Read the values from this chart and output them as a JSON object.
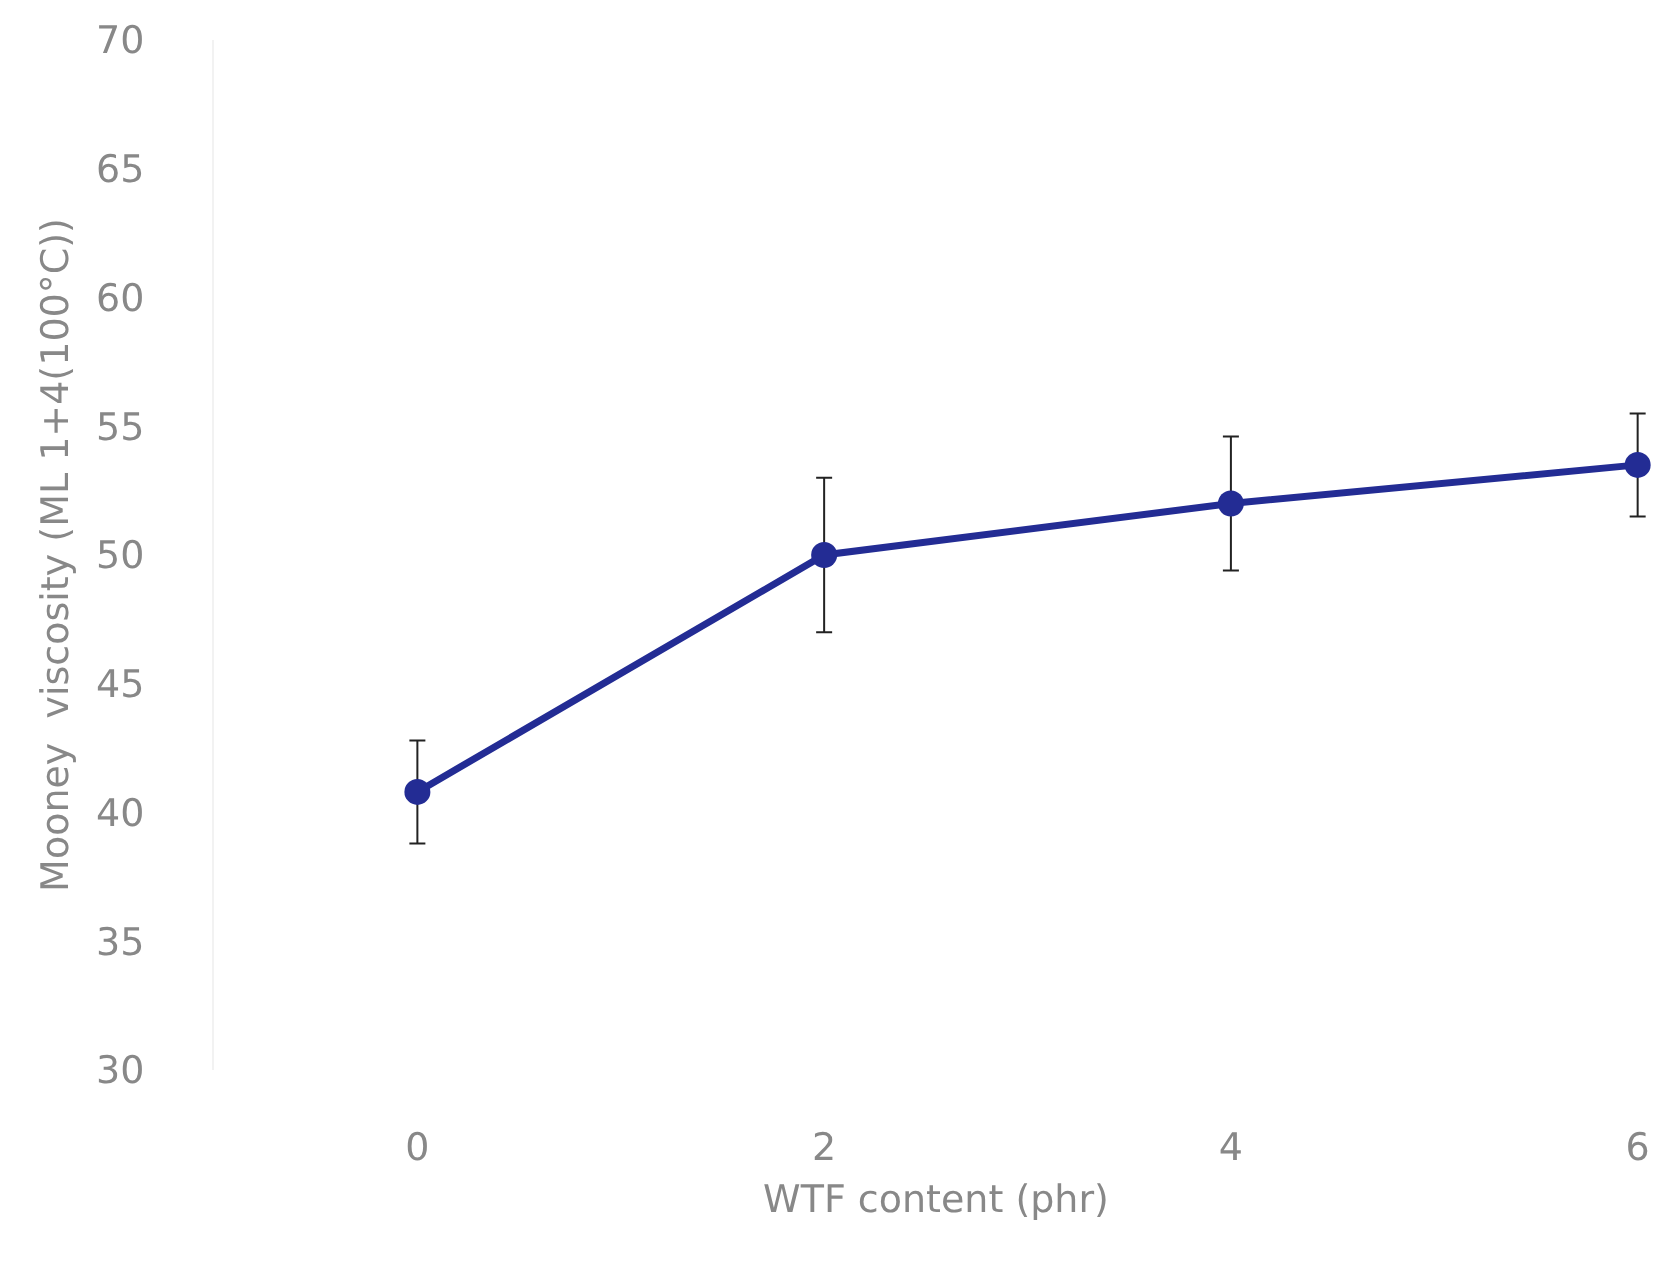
{
  "chart_data": {
    "type": "line",
    "xlabel": "WTF content (phr)",
    "ylabel": "Mooney  viscosity (ML 1+4(100°C))",
    "x": [
      0,
      2,
      4,
      6
    ],
    "series": [
      {
        "color": "#232c94",
        "values": [
          40.8,
          50.0,
          52.0,
          53.5
        ],
        "errors": [
          2.0,
          3.0,
          2.6,
          2.0
        ]
      }
    ],
    "xlim": [
      -1,
      6.1
    ],
    "xticks": [
      0,
      2,
      4,
      6
    ],
    "ylim": [
      30,
      70
    ],
    "yticks": [
      30,
      35,
      40,
      45,
      50,
      55,
      60,
      65,
      70
    ],
    "marker": "circle",
    "line_style": "solid"
  }
}
